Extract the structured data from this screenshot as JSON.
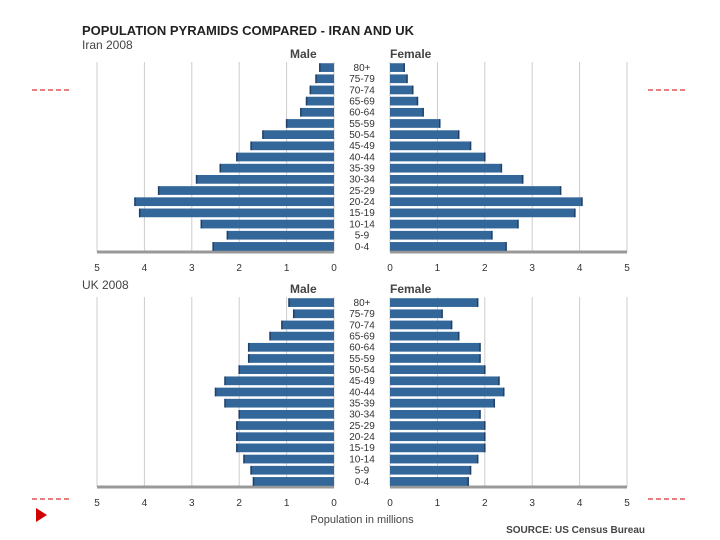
{
  "chart_data": {
    "type": "bar",
    "title": "POPULATION PYRAMIDS COMPARED - IRAN AND UK",
    "xlabel": "Population in millions",
    "source": "SOURCE: US Census Bureau",
    "male_label": "Male",
    "female_label": "Female",
    "xlim": [
      0,
      5
    ],
    "xticks": [
      "5",
      "4",
      "3",
      "2",
      "1",
      "0",
      "0",
      "1",
      "2",
      "3",
      "4",
      "5"
    ],
    "categories": [
      "80+",
      "75-79",
      "70-74",
      "65-69",
      "60-64",
      "55-59",
      "50-54",
      "45-49",
      "40-44",
      "35-39",
      "30-34",
      "25-29",
      "20-24",
      "15-19",
      "10-14",
      "5-9",
      "0-4"
    ],
    "panels": [
      {
        "name": "Iran 2008",
        "male": [
          0.3,
          0.38,
          0.5,
          0.58,
          0.7,
          1.0,
          1.5,
          1.75,
          2.05,
          2.4,
          2.9,
          3.7,
          4.2,
          4.1,
          2.8,
          2.25,
          2.55
        ],
        "female": [
          0.3,
          0.36,
          0.48,
          0.58,
          0.7,
          1.05,
          1.45,
          1.7,
          2.0,
          2.35,
          2.8,
          3.6,
          4.05,
          3.9,
          2.7,
          2.15,
          2.45
        ]
      },
      {
        "name": "UK 2008",
        "male": [
          0.95,
          0.85,
          1.1,
          1.35,
          1.8,
          1.8,
          2.0,
          2.3,
          2.5,
          2.3,
          2.0,
          2.05,
          2.05,
          2.05,
          1.9,
          1.75,
          1.7
        ],
        "female": [
          1.85,
          1.1,
          1.3,
          1.45,
          1.9,
          1.9,
          2.0,
          2.3,
          2.4,
          2.2,
          1.9,
          2.0,
          2.0,
          2.0,
          1.85,
          1.7,
          1.65
        ]
      }
    ]
  },
  "theme": {
    "bar": "#336699",
    "bar_dark": "#1f3f66",
    "grid": "#cccccc",
    "axis": "#999999",
    "accent": "#cc0000",
    "arrow": "#d00000"
  }
}
